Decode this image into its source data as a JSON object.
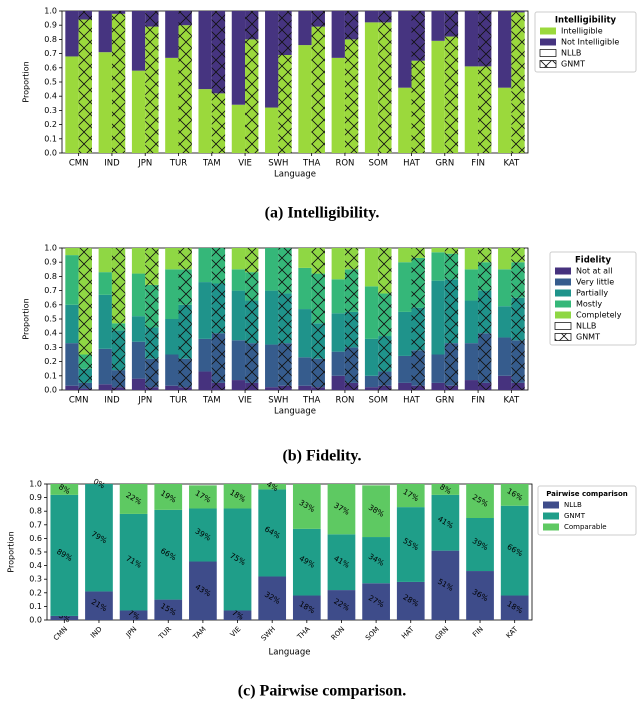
{
  "chart_data": [
    {
      "type": "bar",
      "title": "(a) Intelligibility.",
      "ylabel": "Proportion",
      "xlabel": "Language",
      "legend_title": "Intelligibility",
      "categories": [
        "CMN",
        "IND",
        "JPN",
        "TUR",
        "TAM",
        "VIE",
        "SWH",
        "THA",
        "RON",
        "SOM",
        "HAT",
        "GRN",
        "FIN",
        "KAT"
      ],
      "ylim": [
        0,
        1
      ],
      "yticks": [
        {
          "value": 0,
          "label": "0.0"
        },
        0.1,
        0.2,
        0.3,
        0.4,
        0.5,
        0.6,
        0.7,
        0.8,
        0.9,
        {
          "value": 1,
          "label": "1.0"
        }
      ],
      "series": [
        {
          "name": "Intelligible",
          "color": "#9bd93c"
        },
        {
          "name": "Not Intelligible",
          "color": "#463480"
        }
      ],
      "groups": [
        {
          "name": "NLLB",
          "hatch": false,
          "values": [
            [
              0.68,
              0.71,
              0.58,
              0.67,
              0.45,
              0.34,
              0.32,
              0.76,
              0.67,
              0.92,
              0.46,
              0.79,
              0.61,
              0.46
            ],
            [
              0.32,
              0.29,
              0.42,
              0.33,
              0.55,
              0.66,
              0.68,
              0.24,
              0.33,
              0.08,
              0.54,
              0.21,
              0.39,
              0.54
            ]
          ]
        },
        {
          "name": "GNMT",
          "hatch": true,
          "values": [
            [
              0.94,
              0.98,
              0.89,
              0.9,
              0.42,
              0.8,
              0.69,
              0.89,
              0.8,
              0.92,
              0.65,
              0.82,
              0.61,
              0.99
            ],
            [
              0.06,
              0.02,
              0.11,
              0.1,
              0.58,
              0.2,
              0.31,
              0.11,
              0.2,
              0.08,
              0.35,
              0.18,
              0.39,
              0.01
            ]
          ]
        }
      ]
    },
    {
      "type": "bar",
      "title": "(b) Fidelity.",
      "ylabel": "Proportion",
      "xlabel": "Language",
      "legend_title": "Fidelity",
      "categories": [
        "CMN",
        "IND",
        "JPN",
        "TUR",
        "TAM",
        "VIE",
        "SWH",
        "THA",
        "RON",
        "SOM",
        "HAT",
        "GRN",
        "FIN",
        "KAT"
      ],
      "ylim": [
        0,
        1
      ],
      "yticks": [
        {
          "value": 0,
          "label": "0.0"
        },
        0.1,
        0.2,
        0.3,
        0.4,
        0.5,
        0.6,
        0.7,
        0.8,
        0.9,
        {
          "value": 1,
          "label": "1.0"
        }
      ],
      "series": [
        {
          "name": "Not at all",
          "color": "#46327e"
        },
        {
          "name": "Very little",
          "color": "#365c8d"
        },
        {
          "name": "Partially",
          "color": "#1f938b"
        },
        {
          "name": "Mostly",
          "color": "#35b779"
        },
        {
          "name": "Completely",
          "color": "#8fd744"
        }
      ],
      "groups": [
        {
          "name": "NLLB",
          "hatch": false,
          "values": [
            [
              0.03,
              0.04,
              0.08,
              0.03,
              0.13,
              0.07,
              0.02,
              0.03,
              0.1,
              0.02,
              0.05,
              0.05,
              0.07,
              0.1
            ],
            [
              0.3,
              0.25,
              0.26,
              0.22,
              0.23,
              0.28,
              0.3,
              0.2,
              0.17,
              0.08,
              0.19,
              0.2,
              0.26,
              0.27
            ],
            [
              0.27,
              0.38,
              0.18,
              0.25,
              0.4,
              0.35,
              0.38,
              0.34,
              0.27,
              0.26,
              0.31,
              0.52,
              0.3,
              0.22
            ],
            [
              0.35,
              0.16,
              0.3,
              0.35,
              0.24,
              0.15,
              0.3,
              0.29,
              0.24,
              0.37,
              0.35,
              0.2,
              0.22,
              0.26
            ],
            [
              0.05,
              0.17,
              0.18,
              0.15,
              0,
              0.15,
              0,
              0.14,
              0.22,
              0.27,
              0.1,
              0.03,
              0.15,
              0.15
            ]
          ]
        },
        {
          "name": "GNMT",
          "hatch": true,
          "values": [
            [
              0.01,
              0.02,
              0.02,
              0.02,
              0.05,
              0.05,
              0.03,
              0.02,
              0.05,
              0.03,
              0.03,
              0.03,
              0.05,
              0.05
            ],
            [
              0.04,
              0.12,
              0.2,
              0.2,
              0.35,
              0.28,
              0.3,
              0.2,
              0.25,
              0.1,
              0.25,
              0.3,
              0.35,
              0.3
            ],
            [
              0.1,
              0.28,
              0.22,
              0.38,
              0.35,
              0.3,
              0.35,
              0.25,
              0.25,
              0.25,
              0.3,
              0.45,
              0.3,
              0.3
            ],
            [
              0.1,
              0.05,
              0.3,
              0.25,
              0.25,
              0.2,
              0.32,
              0.35,
              0.3,
              0.3,
              0.35,
              0.18,
              0.2,
              0.25
            ],
            [
              0.75,
              0.53,
              0.26,
              0.15,
              0,
              0.17,
              0,
              0.18,
              0.15,
              0.32,
              0.07,
              0.04,
              0.1,
              0.1
            ]
          ]
        }
      ]
    },
    {
      "type": "bar",
      "title": "(c) Pairwise comparison.",
      "ylabel": "Proportion",
      "xlabel": "Language",
      "legend_title": "Pairwise comparison",
      "xtick_rotation": 45,
      "categories": [
        "CMN",
        "IND",
        "JPN",
        "TUR",
        "TAM",
        "VIE",
        "SWH",
        "THA",
        "RON",
        "SOM",
        "HAT",
        "GRN",
        "FIN",
        "KAT"
      ],
      "ylim": [
        0,
        1
      ],
      "yticks": [
        {
          "value": 0,
          "label": "0.0"
        },
        0.1,
        0.2,
        0.3,
        0.4,
        0.5,
        0.6,
        0.7,
        0.8,
        0.9,
        {
          "value": 1,
          "label": "1.0"
        }
      ],
      "series": [
        {
          "name": "NLLB",
          "color": "#3e4c8a",
          "values": [
            0.03,
            0.21,
            0.07,
            0.15,
            0.43,
            0.07,
            0.32,
            0.18,
            0.22,
            0.27,
            0.28,
            0.51,
            0.36,
            0.18
          ],
          "value_labels": [
            "3%",
            "21%",
            "7%",
            "15%",
            "43%",
            "7%",
            "32%",
            "18%",
            "22%",
            "27%",
            "28%",
            "51%",
            "36%",
            "18%"
          ]
        },
        {
          "name": "GNMT",
          "color": "#1f9e89",
          "values": [
            0.89,
            0.79,
            0.71,
            0.66,
            0.39,
            0.75,
            0.64,
            0.49,
            0.41,
            0.34,
            0.55,
            0.41,
            0.39,
            0.66
          ],
          "value_labels": [
            "89%",
            "79%",
            "71%",
            "66%",
            "39%",
            "75%",
            "64%",
            "49%",
            "41%",
            "34%",
            "55%",
            "41%",
            "39%",
            "66%"
          ]
        },
        {
          "name": "Comparable",
          "color": "#5ec962",
          "values": [
            0.08,
            0,
            0.22,
            0.19,
            0.17,
            0.18,
            0.04,
            0.33,
            0.37,
            0.38,
            0.17,
            0.08,
            0.25,
            0.16
          ],
          "value_labels": [
            "8%",
            "0%",
            "22%",
            "19%",
            "17%",
            "18%",
            "4%",
            "33%",
            "37%",
            "38%",
            "17%",
            "8%",
            "25%",
            "16%"
          ]
        }
      ]
    }
  ]
}
